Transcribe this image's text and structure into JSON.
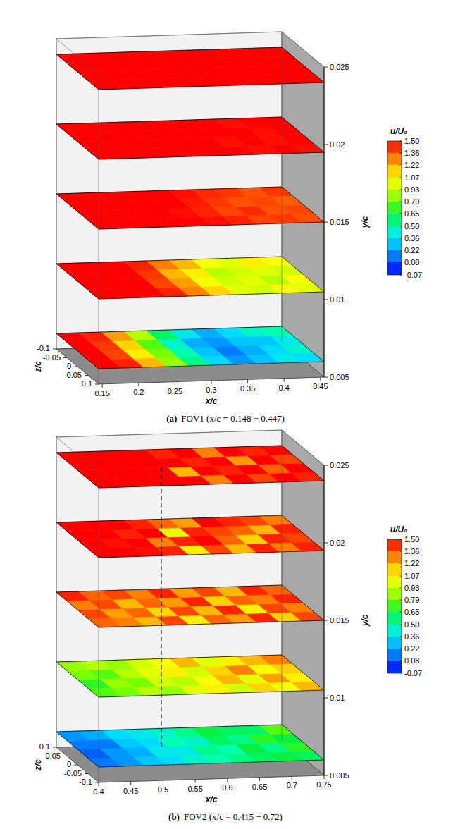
{
  "chart_data": [
    {
      "type": "heatmap",
      "label": "(a)",
      "title": "FOV1 (x/c = 0.148 − 0.447)",
      "x_label": "x/c",
      "y_label": "y/c",
      "z_label": "z/c",
      "xlim": [
        0.145,
        0.455
      ],
      "xticks": [
        0.15,
        0.2,
        0.25,
        0.3,
        0.35,
        0.4,
        0.45
      ],
      "ylim": [
        0.005,
        0.025
      ],
      "yticks": [
        0.005,
        0.01,
        0.015,
        0.02,
        0.025
      ],
      "zlim": [
        0.1,
        -0.1
      ],
      "zticks": [
        -0.1,
        -0.05,
        0,
        0.05,
        0.1
      ],
      "colorbar": {
        "title": "u/U₀",
        "range": [
          -0.07,
          1.5
        ],
        "ticks": [
          {
            "value": 1.5,
            "label": "1.50"
          },
          1.36,
          1.22,
          1.07,
          0.93,
          0.79,
          0.65,
          {
            "value": 0.5,
            "label": "0.50"
          },
          0.36,
          0.22,
          0.08,
          -0.07
        ]
      },
      "planes": [
        {
          "y": 0.006,
          "cells": [
            [
              1.5,
              1.45,
              1.2,
              0.85,
              0.55,
              0.35,
              0.2,
              0.3,
              0.4,
              0.35
            ],
            [
              1.5,
              1.4,
              1.1,
              0.8,
              0.5,
              0.3,
              0.15,
              0.25,
              0.35,
              0.45
            ],
            [
              1.5,
              1.42,
              1.15,
              0.75,
              0.45,
              0.25,
              0.2,
              0.3,
              0.3,
              0.4
            ],
            [
              1.5,
              1.45,
              1.25,
              0.9,
              0.6,
              0.4,
              0.25,
              0.35,
              0.45,
              0.5
            ]
          ]
        },
        {
          "y": 0.0105,
          "cells": [
            [
              1.5,
              1.5,
              1.5,
              1.45,
              1.3,
              1.15,
              1.0,
              0.95,
              1.05,
              1.0
            ],
            [
              1.5,
              1.5,
              1.5,
              1.4,
              1.25,
              1.05,
              0.95,
              1.0,
              0.9,
              1.05
            ],
            [
              1.5,
              1.5,
              1.5,
              1.42,
              1.2,
              1.1,
              0.9,
              0.95,
              1.0,
              0.95
            ],
            [
              1.5,
              1.5,
              1.5,
              1.45,
              1.3,
              1.2,
              1.05,
              1.0,
              1.1,
              1.05
            ]
          ]
        },
        {
          "y": 0.015,
          "cells": [
            [
              1.5,
              1.5,
              1.5,
              1.5,
              1.5,
              1.48,
              1.45,
              1.4,
              1.42,
              1.38
            ],
            [
              1.5,
              1.5,
              1.5,
              1.5,
              1.48,
              1.45,
              1.4,
              1.44,
              1.38,
              1.4
            ],
            [
              1.5,
              1.5,
              1.5,
              1.5,
              1.5,
              1.46,
              1.42,
              1.38,
              1.4,
              1.36
            ],
            [
              1.5,
              1.5,
              1.5,
              1.5,
              1.5,
              1.48,
              1.44,
              1.42,
              1.38,
              1.42
            ]
          ]
        },
        {
          "y": 0.0195,
          "cells": [
            [
              1.5,
              1.5,
              1.5,
              1.5,
              1.5,
              1.5,
              1.5,
              1.48,
              1.5,
              1.48
            ],
            [
              1.5,
              1.5,
              1.5,
              1.5,
              1.5,
              1.5,
              1.48,
              1.5,
              1.48,
              1.5
            ],
            [
              1.5,
              1.5,
              1.5,
              1.5,
              1.5,
              1.5,
              1.5,
              1.5,
              1.48,
              1.5
            ],
            [
              1.5,
              1.5,
              1.5,
              1.5,
              1.5,
              1.5,
              1.5,
              1.48,
              1.5,
              1.5
            ]
          ]
        },
        {
          "y": 0.024,
          "cells": [
            [
              1.5,
              1.5,
              1.5,
              1.5,
              1.5,
              1.5,
              1.5,
              1.5,
              1.5,
              1.5
            ],
            [
              1.5,
              1.5,
              1.5,
              1.5,
              1.5,
              1.5,
              1.5,
              1.5,
              1.5,
              1.5
            ],
            [
              1.5,
              1.5,
              1.5,
              1.5,
              1.5,
              1.5,
              1.5,
              1.5,
              1.5,
              1.5
            ],
            [
              1.5,
              1.5,
              1.5,
              1.5,
              1.5,
              1.5,
              1.5,
              1.5,
              1.5,
              1.5
            ]
          ]
        }
      ]
    },
    {
      "type": "heatmap",
      "label": "(b)",
      "title": "FOV2 (x/c = 0.415 − 0.72)",
      "x_label": "x/c",
      "y_label": "y/c",
      "z_label": "z/c",
      "xlim": [
        0.4,
        0.75
      ],
      "xticks": [
        0.4,
        0.45,
        0.5,
        0.55,
        0.6,
        0.65,
        0.7,
        0.75
      ],
      "ylim": [
        0.005,
        0.025
      ],
      "yticks": [
        0.005,
        0.01,
        0.015,
        0.02,
        0.025
      ],
      "zlim": [
        -0.1,
        0.1
      ],
      "zticks": [
        -0.1,
        -0.05,
        0,
        0.05,
        0.1
      ],
      "colorbar": {
        "title": "u/U₀",
        "range": [
          -0.07,
          1.5
        ],
        "ticks": [
          {
            "value": 1.5,
            "label": "1.50"
          },
          1.36,
          1.22,
          1.07,
          0.93,
          0.79,
          0.65,
          {
            "value": 0.5,
            "label": "0.50"
          },
          0.36,
          0.22,
          0.08,
          -0.07
        ]
      },
      "reference_line": {
        "x": 0.53,
        "z": 0,
        "line_style": "dashed"
      },
      "planes": [
        {
          "y": 0.006,
          "cells": [
            [
              0.15,
              0.2,
              0.3,
              0.35,
              0.45,
              0.5,
              0.55,
              0.6,
              0.65,
              0.6
            ],
            [
              0.1,
              0.2,
              0.25,
              0.4,
              0.4,
              0.55,
              0.5,
              0.65,
              0.55,
              0.7
            ],
            [
              0.15,
              0.15,
              0.3,
              0.35,
              0.5,
              0.45,
              0.6,
              0.55,
              0.7,
              0.65
            ],
            [
              0.2,
              0.25,
              0.35,
              0.4,
              0.45,
              0.55,
              0.65,
              0.6,
              0.6,
              0.75
            ]
          ]
        },
        {
          "y": 0.0105,
          "cells": [
            [
              0.75,
              0.8,
              0.9,
              0.85,
              1.0,
              1.1,
              0.95,
              1.15,
              1.05,
              1.2
            ],
            [
              0.7,
              0.85,
              0.8,
              0.95,
              0.9,
              1.05,
              1.2,
              1.0,
              1.25,
              1.1
            ],
            [
              0.8,
              0.75,
              0.9,
              1.0,
              1.1,
              0.95,
              1.15,
              1.3,
              1.05,
              1.15
            ],
            [
              0.85,
              0.9,
              0.85,
              0.95,
              1.05,
              1.2,
              1.0,
              1.1,
              1.2,
              1.3
            ]
          ]
        },
        {
          "y": 0.015,
          "cells": [
            [
              1.35,
              1.3,
              1.2,
              1.4,
              1.1,
              1.35,
              1.25,
              1.45,
              1.15,
              1.4
            ],
            [
              1.4,
              1.25,
              1.35,
              1.15,
              1.4,
              1.2,
              1.45,
              1.1,
              1.4,
              1.3
            ],
            [
              1.3,
              1.4,
              1.2,
              1.35,
              1.25,
              1.45,
              1.15,
              1.35,
              1.3,
              1.45
            ],
            [
              1.45,
              1.35,
              1.4,
              1.3,
              1.45,
              1.25,
              1.4,
              1.2,
              1.45,
              1.35
            ]
          ]
        },
        {
          "y": 0.0195,
          "cells": [
            [
              1.5,
              1.5,
              1.48,
              1.45,
              1.1,
              1.4,
              1.2,
              1.45,
              1.3,
              1.45
            ],
            [
              1.5,
              1.48,
              1.5,
              1.3,
              1.45,
              1.5,
              1.35,
              1.15,
              1.45,
              1.4
            ],
            [
              1.5,
              1.5,
              1.45,
              1.5,
              1.0,
              1.45,
              1.4,
              1.35,
              1.2,
              1.45
            ],
            [
              1.5,
              1.5,
              1.5,
              1.45,
              1.35,
              1.25,
              1.5,
              1.45,
              1.4,
              1.3
            ]
          ]
        },
        {
          "y": 0.024,
          "cells": [
            [
              1.5,
              1.5,
              1.5,
              1.5,
              1.5,
              1.3,
              1.5,
              1.4,
              1.5,
              1.45
            ],
            [
              1.5,
              1.5,
              1.5,
              1.5,
              1.2,
              1.5,
              1.45,
              1.5,
              1.35,
              1.5
            ],
            [
              1.5,
              1.5,
              1.5,
              1.5,
              1.5,
              1.45,
              1.5,
              1.25,
              1.5,
              1.4
            ],
            [
              1.5,
              1.5,
              1.5,
              1.5,
              1.45,
              1.5,
              1.3,
              1.5,
              1.45,
              1.5
            ]
          ]
        }
      ]
    }
  ]
}
